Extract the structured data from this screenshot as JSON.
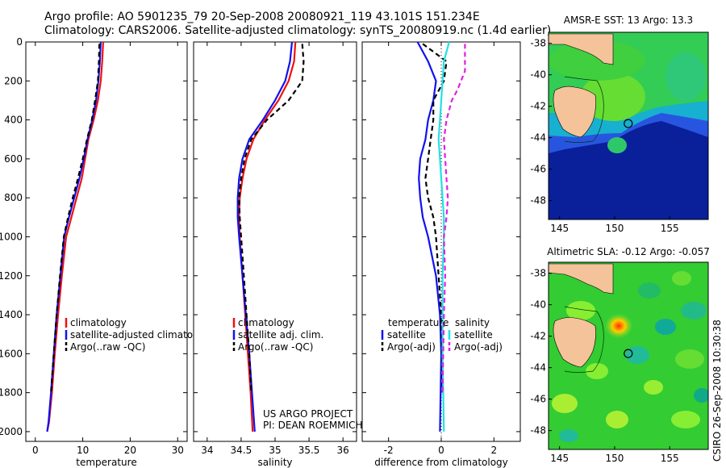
{
  "header": {
    "line1": "Argo profile: AO 5901235_79 20-Sep-2008 20080921_119 43.101S 151.234E",
    "line2": "Climatology: CARS2006. Satellite-adjusted climatology: synTS_20080919.nc (1.4d earlier)"
  },
  "side_label": "CSIRO 26-Sep-2008 10:30:38",
  "colors": {
    "red": "#ee1111",
    "blue": "#1111ee",
    "black": "#000000",
    "cyan": "#22e0e6",
    "magenta": "#e020e0",
    "land": "#f2bf95",
    "ocean_green": "#33cc33",
    "ocean_deep": "#0a2aa0"
  },
  "chart_data": [
    {
      "type": "line",
      "xlabel": "temperature",
      "ylim": [
        0,
        2050
      ],
      "y_reversed": true,
      "xlim": [
        -2,
        32
      ],
      "xticks": [
        "0",
        "10",
        "20",
        "30"
      ],
      "yticks": [
        "0",
        "200",
        "400",
        "600",
        "800",
        "1000",
        "1200",
        "1400",
        "1600",
        "1800",
        "2000"
      ],
      "legend": [
        "climatology",
        "satellite-adjusted climatology",
        "Argo(..raw -QC)"
      ],
      "series": [
        {
          "name": "climatology",
          "color": "red",
          "dash": "",
          "x": [
            14.3,
            14.1,
            13.8,
            13.2,
            12.3,
            11.2,
            10.5,
            9.8,
            8.7,
            7.6,
            6.5,
            5.6,
            4.8,
            4.1,
            3.5,
            2.9,
            2.5
          ],
          "y": [
            0,
            100,
            200,
            300,
            400,
            500,
            600,
            700,
            800,
            900,
            1000,
            1200,
            1400,
            1600,
            1800,
            1950,
            2000
          ]
        },
        {
          "name": "satellite-adjusted climatology",
          "color": "blue",
          "dash": "",
          "x": [
            13.8,
            13.6,
            13.3,
            12.8,
            12.0,
            11.0,
            10.2,
            9.3,
            8.2,
            7.1,
            6.1,
            5.3,
            4.5,
            3.9,
            3.3,
            2.8,
            2.5
          ],
          "y": [
            0,
            100,
            200,
            300,
            400,
            500,
            600,
            700,
            800,
            900,
            1000,
            1200,
            1400,
            1600,
            1800,
            1950,
            2000
          ]
        },
        {
          "name": "Argo(..raw -QC)",
          "color": "black",
          "dash": "6,4",
          "x": [
            13.5,
            13.4,
            13.2,
            12.6,
            11.9,
            10.9,
            10.0,
            9.0,
            7.9,
            6.9,
            6.0,
            5.2,
            4.5,
            3.9,
            3.3
          ],
          "y": [
            10,
            100,
            200,
            300,
            400,
            500,
            600,
            700,
            800,
            900,
            1000,
            1200,
            1400,
            1600,
            1800
          ]
        }
      ],
      "annotations": []
    },
    {
      "type": "line",
      "xlabel": "salinity",
      "ylim": [
        0,
        2050
      ],
      "y_reversed": true,
      "xlim": [
        33.8,
        36.2
      ],
      "xticks": [
        "34",
        "34.5",
        "35",
        "35.5",
        "36"
      ],
      "legend": [
        "climatology",
        "satellite adj. clim.",
        "Argo(..raw -QC)"
      ],
      "series": [
        {
          "name": "climatology",
          "color": "red",
          "dash": "",
          "x": [
            35.3,
            35.28,
            35.2,
            35.05,
            34.85,
            34.68,
            34.58,
            34.52,
            34.48,
            34.47,
            34.48,
            34.52,
            34.56,
            34.6,
            34.64,
            34.67
          ],
          "y": [
            0,
            100,
            200,
            300,
            400,
            500,
            600,
            700,
            800,
            900,
            1000,
            1200,
            1400,
            1600,
            1800,
            2000
          ]
        },
        {
          "name": "satellite adj. clim.",
          "color": "blue",
          "dash": "",
          "x": [
            35.25,
            35.22,
            35.15,
            35.0,
            34.82,
            34.62,
            34.52,
            34.47,
            34.45,
            34.45,
            34.47,
            34.52,
            34.57,
            34.62,
            34.66,
            34.7
          ],
          "y": [
            0,
            100,
            200,
            300,
            400,
            500,
            600,
            700,
            800,
            900,
            1000,
            1200,
            1400,
            1600,
            1800,
            2000
          ]
        },
        {
          "name": "Argo(..raw -QC)",
          "color": "black",
          "dash": "6,4",
          "x": [
            35.4,
            35.42,
            35.4,
            35.2,
            34.88,
            34.65,
            34.55,
            34.5,
            34.47,
            34.48,
            34.5,
            34.54,
            34.58,
            34.62,
            34.65
          ],
          "y": [
            10,
            100,
            200,
            300,
            400,
            500,
            600,
            700,
            800,
            900,
            1000,
            1200,
            1400,
            1600,
            1800
          ]
        }
      ],
      "annotations": [
        "US ARGO PROJECT",
        "PI: DEAN ROEMMICH"
      ]
    },
    {
      "type": "line",
      "xlabel": "difference from climatology",
      "ylim": [
        0,
        2050
      ],
      "y_reversed": true,
      "xlim": [
        -3,
        3
      ],
      "xticks": [
        "-2",
        "0",
        "2"
      ],
      "legend_groups": [
        {
          "title": "temperature",
          "items": [
            "satellite",
            "Argo(-adj)"
          ]
        },
        {
          "title": "salinity",
          "items": [
            "satellite",
            "Argo(-adj)"
          ]
        }
      ],
      "series": [
        {
          "name": "temperature satellite",
          "color": "blue",
          "dash": "",
          "x": [
            -0.9,
            -0.5,
            -0.2,
            -0.3,
            -0.5,
            -0.6,
            -0.8,
            -0.85,
            -0.8,
            -0.7,
            -0.5,
            -0.2,
            -0.05,
            0,
            -0.05
          ],
          "y": [
            0,
            100,
            200,
            300,
            400,
            500,
            600,
            700,
            800,
            900,
            1000,
            1200,
            1400,
            1600,
            2000
          ]
        },
        {
          "name": "temperature Argo(-adj)",
          "color": "black",
          "dash": "6,4",
          "x": [
            -0.7,
            0.2,
            0.1,
            -0.3,
            -0.3,
            -0.4,
            -0.5,
            -0.6,
            -0.5,
            -0.3,
            -0.2,
            -0.1,
            0,
            0.05
          ],
          "y": [
            10,
            100,
            200,
            300,
            400,
            500,
            600,
            700,
            800,
            900,
            1000,
            1200,
            1400,
            1800
          ]
        },
        {
          "name": "salinity satellite",
          "color": "cyan",
          "dash": "",
          "x": [
            0.3,
            0.1,
            0.05,
            0,
            -0.05,
            -0.1,
            -0.05,
            0,
            0.05,
            0.1,
            0.1,
            0.05,
            0.05,
            0.1
          ],
          "y": [
            0,
            100,
            200,
            300,
            400,
            500,
            600,
            700,
            800,
            900,
            1000,
            1200,
            1600,
            2000
          ]
        },
        {
          "name": "salinity Argo(-adj)",
          "color": "magenta",
          "dash": "6,4",
          "x": [
            0.9,
            0.9,
            0.6,
            0.4,
            0.2,
            0.1,
            0.15,
            0.2,
            0.25,
            0.2,
            0.1,
            0.15,
            0.1,
            0.05
          ],
          "y": [
            10,
            150,
            250,
            300,
            400,
            500,
            600,
            700,
            800,
            900,
            1000,
            1200,
            1400,
            1800
          ]
        }
      ],
      "reference_line": 0
    }
  ],
  "maps": [
    {
      "title": "AMSR-E SST: 13 Argo: 13.3",
      "xticks": [
        "145",
        "150",
        "155"
      ],
      "yticks": [
        "-38",
        "-40",
        "-42",
        "-44",
        "-46",
        "-48"
      ],
      "xlim": [
        144,
        158.5
      ],
      "ylim": [
        -49.2,
        -37.3
      ],
      "argo_position": {
        "lon": 151.234,
        "lat": -43.101
      }
    },
    {
      "title": "Altimetric SLA: -0.12 Argo: -0.057",
      "xticks": [
        "145",
        "150",
        "155"
      ],
      "yticks": [
        "-38",
        "-40",
        "-42",
        "-44",
        "-46",
        "-48"
      ],
      "xlim": [
        144,
        158.5
      ],
      "ylim": [
        -49.2,
        -37.3
      ],
      "argo_position": {
        "lon": 151.234,
        "lat": -43.101
      }
    }
  ]
}
